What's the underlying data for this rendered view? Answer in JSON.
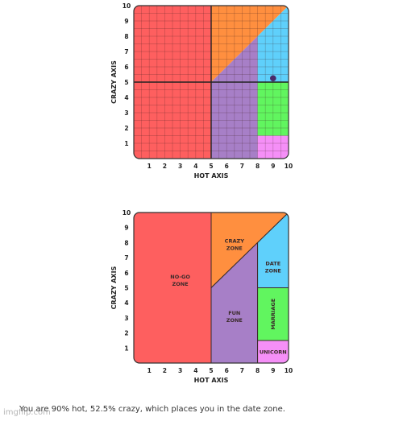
{
  "chart_data": [
    {
      "type": "scatter",
      "title": "",
      "xlabel": "HOT AXIS",
      "ylabel": "CRAZY AXIS",
      "xlim": [
        0,
        10
      ],
      "ylim": [
        0,
        10
      ],
      "x_ticks": [
        "1",
        "2",
        "3",
        "4",
        "5",
        "6",
        "7",
        "8",
        "9",
        "10"
      ],
      "y_ticks": [
        "1",
        "2",
        "3",
        "4",
        "5",
        "6",
        "7",
        "8",
        "9",
        "10"
      ],
      "grid": true,
      "crosshair": {
        "x": 5,
        "y": 5
      },
      "series": [
        {
          "x": [
            9
          ],
          "y": [
            5.25
          ]
        }
      ],
      "marker_color": "#4a2a6a"
    },
    {
      "type": "area",
      "title": "",
      "xlabel": "HOT AXIS",
      "ylabel": "CRAZY AXIS",
      "xlim": [
        0,
        10
      ],
      "ylim": [
        0,
        10
      ],
      "x_ticks": [
        "1",
        "2",
        "3",
        "4",
        "5",
        "6",
        "7",
        "8",
        "9",
        "10"
      ],
      "y_ticks": [
        "1",
        "2",
        "3",
        "4",
        "5",
        "6",
        "7",
        "8",
        "9",
        "10"
      ],
      "grid": false,
      "zones": [
        {
          "label": [
            "NO-GO",
            "ZONE"
          ],
          "color": "#fe5f5f",
          "label_at": [
            3,
            5.5
          ],
          "polygon": [
            [
              0,
              0
            ],
            [
              5,
              0
            ],
            [
              5,
              10
            ],
            [
              0,
              10
            ]
          ]
        },
        {
          "label": [
            "CRAZY",
            "ZONE"
          ],
          "color": "#ff8f3f",
          "label_at": [
            6.5,
            7.9
          ],
          "polygon": [
            [
              5,
              5
            ],
            [
              5,
              10
            ],
            [
              10,
              10
            ]
          ]
        },
        {
          "label": [
            "FUN",
            "ZONE"
          ],
          "color": "#a77fc7",
          "label_at": [
            6.5,
            3.1
          ],
          "polygon": [
            [
              5,
              0
            ],
            [
              8,
              0
            ],
            [
              8,
              8
            ],
            [
              5,
              5
            ]
          ]
        },
        {
          "label": [
            "DATE",
            "ZONE"
          ],
          "color": "#5fd0fb",
          "label_at": [
            9,
            6.4
          ],
          "polygon": [
            [
              8,
              5
            ],
            [
              10,
              5
            ],
            [
              10,
              10
            ],
            [
              8,
              8
            ]
          ]
        },
        {
          "label": [
            "MARRIAGE"
          ],
          "color": "#61f55f",
          "label_at": [
            9,
            3.25
          ],
          "rotate": true,
          "polygon": [
            [
              8,
              1.5
            ],
            [
              10,
              1.5
            ],
            [
              10,
              5
            ],
            [
              8,
              5
            ]
          ]
        },
        {
          "label": [
            "UNICORN"
          ],
          "color": "#f58ff7",
          "label_at": [
            9,
            0.75
          ],
          "polygon": [
            [
              8,
              0
            ],
            [
              10,
              0
            ],
            [
              10,
              1.5
            ],
            [
              8,
              1.5
            ]
          ]
        }
      ]
    }
  ],
  "caption": "You are 90% hot, 52.5% crazy, which places you in the date zone.",
  "watermark": "imgflip.com"
}
